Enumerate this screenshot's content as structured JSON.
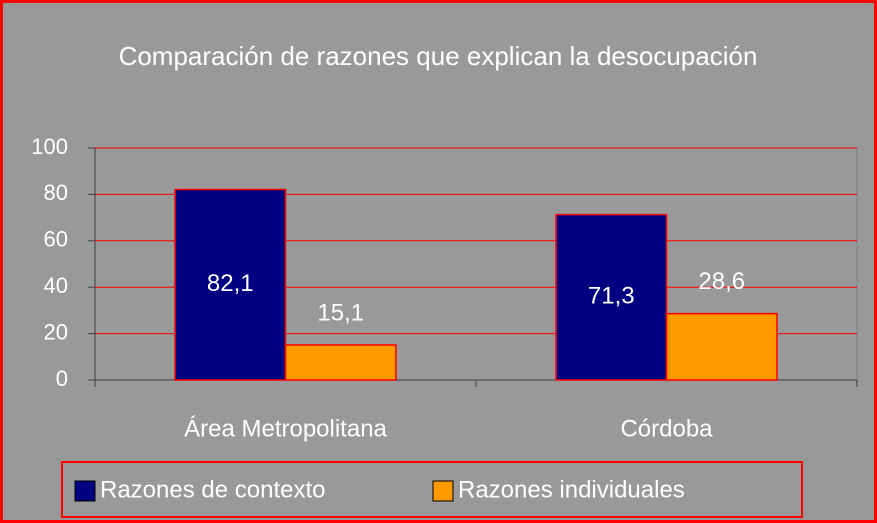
{
  "chart_data": {
    "type": "bar",
    "title": "Comparación de razones que explican la desocupación",
    "categories": [
      "Área Metropolitana",
      "Córdoba"
    ],
    "series": [
      {
        "name": "Razones de contexto",
        "color": "#000080",
        "values": [
          82.1,
          71.3
        ],
        "value_labels": [
          "82,1",
          "71,3"
        ]
      },
      {
        "name": "Razones individuales",
        "color": "#ff9900",
        "values": [
          15.1,
          28.6
        ],
        "value_labels": [
          "15,1",
          "28,6"
        ]
      }
    ],
    "ylim": [
      0,
      100
    ],
    "yticks": [
      0,
      20,
      40,
      60,
      80,
      100
    ],
    "grid": true,
    "grid_color": "#ff0000",
    "legend": "bottom"
  }
}
